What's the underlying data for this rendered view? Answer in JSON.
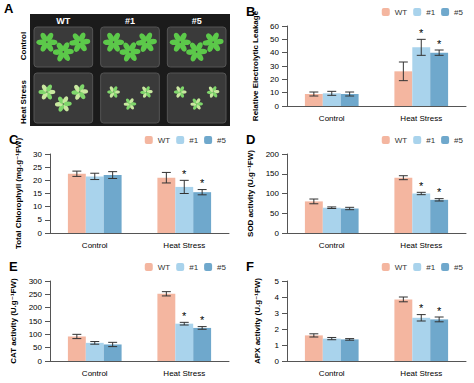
{
  "photo": {
    "title": "A",
    "columns": [
      "WT",
      "#1",
      "#5"
    ],
    "rows": [
      "Control",
      "Heat Stress"
    ]
  },
  "chart_data": [
    {
      "type": "bar",
      "title": "B",
      "y_label": "Relative Electrolytic Leakage",
      "categories": [
        "Control",
        "Heat Stress"
      ],
      "ylim": [
        0,
        60
      ],
      "yticks": [
        0,
        10,
        20,
        30,
        40,
        50,
        60
      ],
      "grid": false,
      "legend": "top-right",
      "series": [
        {
          "name": "WT",
          "color": "#f4b6a0",
          "values": [
            9,
            26
          ],
          "errors": [
            1.5,
            7
          ],
          "significance": [
            null,
            null
          ]
        },
        {
          "name": "#1",
          "color": "#a9d3ec",
          "values": [
            9.5,
            44
          ],
          "errors": [
            1.5,
            6
          ],
          "significance": [
            null,
            "*"
          ]
        },
        {
          "name": "#5",
          "color": "#6fa8cc",
          "values": [
            9,
            40
          ],
          "errors": [
            1.5,
            2
          ],
          "significance": [
            null,
            "*"
          ]
        }
      ]
    },
    {
      "type": "bar",
      "title": "C",
      "y_label": "Total Chlorophyll (mg.g⁻¹FW)",
      "categories": [
        "Control",
        "Heat Stress"
      ],
      "ylim": [
        0,
        30
      ],
      "yticks": [
        0,
        5,
        10,
        15,
        20,
        25,
        30
      ],
      "grid": false,
      "legend": "top-right",
      "series": [
        {
          "name": "WT",
          "color": "#f4b6a0",
          "values": [
            22.5,
            21
          ],
          "errors": [
            1,
            2
          ],
          "significance": [
            null,
            null
          ]
        },
        {
          "name": "#1",
          "color": "#a9d3ec",
          "values": [
            21.5,
            17.5
          ],
          "errors": [
            1.2,
            2.5
          ],
          "significance": [
            null,
            "*"
          ]
        },
        {
          "name": "#5",
          "color": "#6fa8cc",
          "values": [
            22,
            15.5
          ],
          "errors": [
            1.3,
            1
          ],
          "significance": [
            null,
            "*"
          ]
        }
      ]
    },
    {
      "type": "bar",
      "title": "D",
      "y_label": "SOD activity (U.g⁻¹FW)",
      "categories": [
        "Control",
        "Heat Stress"
      ],
      "ylim": [
        0,
        200
      ],
      "yticks": [
        0,
        50,
        100,
        150,
        200
      ],
      "grid": false,
      "legend": "top-right",
      "series": [
        {
          "name": "WT",
          "color": "#f4b6a0",
          "values": [
            80,
            140
          ],
          "errors": [
            6,
            5
          ],
          "significance": [
            null,
            null
          ]
        },
        {
          "name": "#1",
          "color": "#a9d3ec",
          "values": [
            64,
            100
          ],
          "errors": [
            2,
            3
          ],
          "significance": [
            null,
            "*"
          ]
        },
        {
          "name": "#5",
          "color": "#6fa8cc",
          "values": [
            62,
            84
          ],
          "errors": [
            3,
            3
          ],
          "significance": [
            null,
            "*"
          ]
        }
      ]
    },
    {
      "type": "bar",
      "title": "E",
      "y_label": "CAT activity (U.g⁻¹FW)",
      "categories": [
        "Control",
        "Heat Stress"
      ],
      "ylim": [
        0,
        300
      ],
      "yticks": [
        0,
        50,
        100,
        150,
        200,
        250,
        300
      ],
      "grid": false,
      "legend": "top-right",
      "series": [
        {
          "name": "WT",
          "color": "#f4b6a0",
          "values": [
            92,
            252
          ],
          "errors": [
            8,
            8
          ],
          "significance": [
            null,
            null
          ]
        },
        {
          "name": "#1",
          "color": "#a9d3ec",
          "values": [
            68,
            140
          ],
          "errors": [
            5,
            5
          ],
          "significance": [
            null,
            "*"
          ]
        },
        {
          "name": "#5",
          "color": "#6fa8cc",
          "values": [
            62,
            124
          ],
          "errors": [
            8,
            5
          ],
          "significance": [
            null,
            "*"
          ]
        }
      ]
    },
    {
      "type": "bar",
      "title": "F",
      "y_label": "APX activity (U.g⁻¹FW)",
      "categories": [
        "Control",
        "Heat Stress"
      ],
      "ylim": [
        0,
        5
      ],
      "yticks": [
        0,
        1,
        2,
        3,
        4,
        5
      ],
      "grid": false,
      "legend": "top-right",
      "series": [
        {
          "name": "WT",
          "color": "#f4b6a0",
          "values": [
            1.6,
            3.85
          ],
          "errors": [
            0.1,
            0.15
          ],
          "significance": [
            null,
            null
          ]
        },
        {
          "name": "#1",
          "color": "#a9d3ec",
          "values": [
            1.4,
            2.7
          ],
          "errors": [
            0.07,
            0.2
          ],
          "significance": [
            null,
            "*"
          ]
        },
        {
          "name": "#5",
          "color": "#6fa8cc",
          "values": [
            1.35,
            2.6
          ],
          "errors": [
            0.05,
            0.15
          ],
          "significance": [
            null,
            "*"
          ]
        }
      ]
    }
  ]
}
